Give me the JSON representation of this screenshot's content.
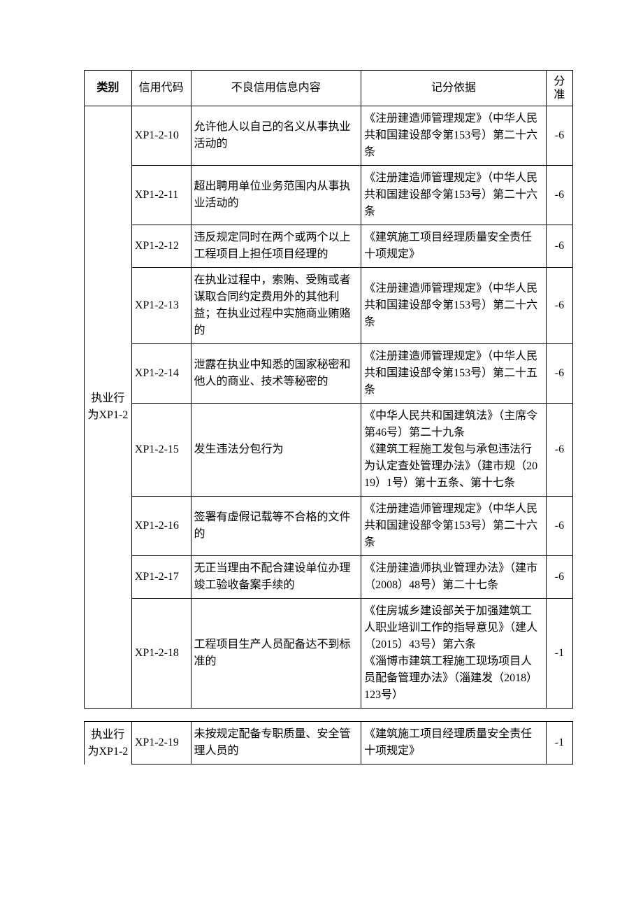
{
  "columns": {
    "category": "类别",
    "code": "信用代码",
    "content": "不良信用信息内容",
    "basis": "记分依据",
    "score_top": "分",
    "score_bot": "准"
  },
  "group1": {
    "category": "执业行为XP1-2",
    "rows": [
      {
        "code": "XP1-2-10",
        "content": "允许他人以自己的名义从事执业活动的",
        "basis": "《注册建造师管理规定》（中华人民共和国建设部令第153号）第二十六条",
        "score": "-6"
      },
      {
        "code": "XP1-2-11",
        "content": "超出聘用单位业务范围内从事执业活动的",
        "basis": "《注册建造师管理规定》（中华人民共和国建设部令第153号）第二十六条",
        "score": "-6"
      },
      {
        "code": "XP1-2-12",
        "content": "违反规定同时在两个或两个以上工程项目上担任项目经理的",
        "basis": "《建筑施工项目经理质量安全责任十项规定》",
        "score": "-6"
      },
      {
        "code": "XP1-2-13",
        "content": "在执业过程中，索贿、受贿或者谋取合同约定费用外的其他利益；在执业过程中实施商业贿赂的",
        "basis": "《注册建造师管理规定》（中华人民共和国建设部令第153号）第二十六条",
        "score": "-6"
      },
      {
        "code": "XP1-2-14",
        "content": "泄露在执业中知悉的国家秘密和他人的商业、技术等秘密的",
        "basis": "《注册建造师管理规定》（中华人民共和国建设部令第153号）第二十五条",
        "score": "-6"
      },
      {
        "code": "XP1-2-15",
        "content": "发生违法分包行为",
        "basis": "《中华人民共和国建筑法》（主席令第46号）第二十九条\n《建筑工程施工发包与承包违法行为认定查处管理办法》（建市规（2019）1号）第十五条、第十七条",
        "score": "-6"
      },
      {
        "code": "XP1-2-16",
        "content": "签署有虚假记载等不合格的文件的",
        "basis": "《注册建造师管理规定》（中华人民共和国建设部令第153号）第二十六条",
        "score": "-6"
      },
      {
        "code": "XP1-2-17",
        "content": "无正当理由不配合建设单位办理竣工验收备案手续的",
        "basis": "《注册建造师执业管理办法》（建市（2008）48号）第二十七条",
        "score": "-6"
      },
      {
        "code": "XP1-2-18",
        "content": "工程项目生产人员配备达不到标准的",
        "basis": "《住房城乡建设部关于加强建筑工人职业培训工作的指导意见》（建人（2015）43号）第六条\n《淄博市建筑工程施工现场项目人员配备管理办法》（淄建发（2018）123号）",
        "score": "-1"
      }
    ]
  },
  "group2": {
    "category": "执业行为XP1-2",
    "rows": [
      {
        "code": "XP1-2-19",
        "content": "未按规定配备专职质量、安全管理人员的",
        "basis": "《建筑施工项目经理质量安全责任十项规定》",
        "score": "-1"
      }
    ]
  }
}
